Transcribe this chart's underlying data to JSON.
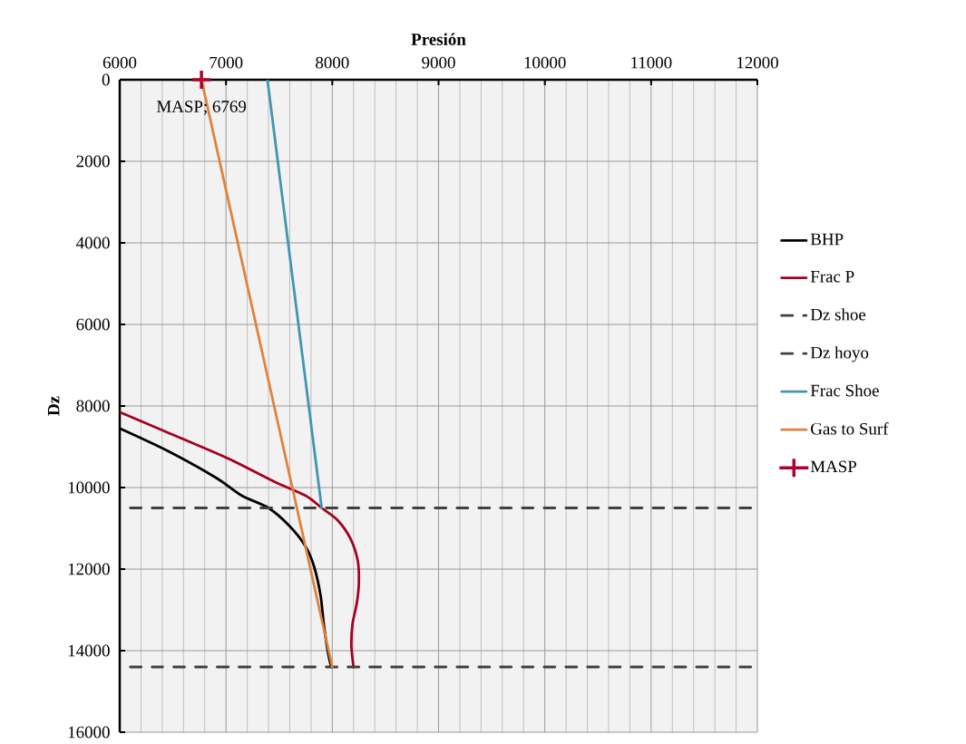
{
  "chart_data": {
    "type": "line",
    "xlabel": "Presión",
    "ylabel": "Dz",
    "xlim": [
      6000,
      12000
    ],
    "ylim": [
      16000,
      0
    ],
    "xticks": [
      6000,
      7000,
      8000,
      9000,
      10000,
      11000,
      12000
    ],
    "yticks": [
      0,
      2000,
      4000,
      6000,
      8000,
      10000,
      12000,
      14000,
      16000
    ],
    "grid": true,
    "legend": "right",
    "annotations": [
      {
        "text": "MASP; 6769",
        "x": 6769,
        "y": 0
      }
    ],
    "series": [
      {
        "name": "BHP",
        "color": "#000000",
        "line_style": "solid",
        "x": [
          6000,
          6450,
          6900,
          7150,
          7400,
          7600,
          7750,
          7830,
          7890,
          7920,
          7960,
          7990
        ],
        "values": [
          8550,
          9100,
          9750,
          10200,
          10500,
          10950,
          11450,
          11950,
          12650,
          13350,
          14050,
          14400
        ]
      },
      {
        "name": "Frac P",
        "color": "#a50021",
        "line_style": "solid",
        "x": [
          6000,
          6450,
          7030,
          7450,
          7750,
          7900,
          8050,
          8170,
          8240,
          8250,
          8230,
          8190,
          8180,
          8200
        ],
        "values": [
          8150,
          8650,
          9300,
          9850,
          10200,
          10500,
          10800,
          11250,
          11800,
          12350,
          12850,
          13350,
          13900,
          14400
        ]
      },
      {
        "name": "Dz shoe",
        "color": "#404040",
        "line_style": "dashed",
        "x": [
          6100,
          12000
        ],
        "values": [
          10500,
          10500
        ]
      },
      {
        "name": "Dz hoyo",
        "color": "#404040",
        "line_style": "dashed",
        "x": [
          6100,
          12000
        ],
        "values": [
          14400,
          14400
        ]
      },
      {
        "name": "Frac Shoe",
        "color": "#4096b0",
        "line_style": "solid",
        "x": [
          7390,
          7900
        ],
        "values": [
          0,
          10500
        ]
      },
      {
        "name": "Gas to Surf",
        "color": "#e0823a",
        "line_style": "solid",
        "x": [
          6769,
          8000
        ],
        "values": [
          0,
          14400
        ]
      },
      {
        "name": "MASP",
        "type": "scatter",
        "marker": "cross",
        "color": "#b00030",
        "x": [
          6769
        ],
        "values": [
          0
        ]
      }
    ]
  }
}
